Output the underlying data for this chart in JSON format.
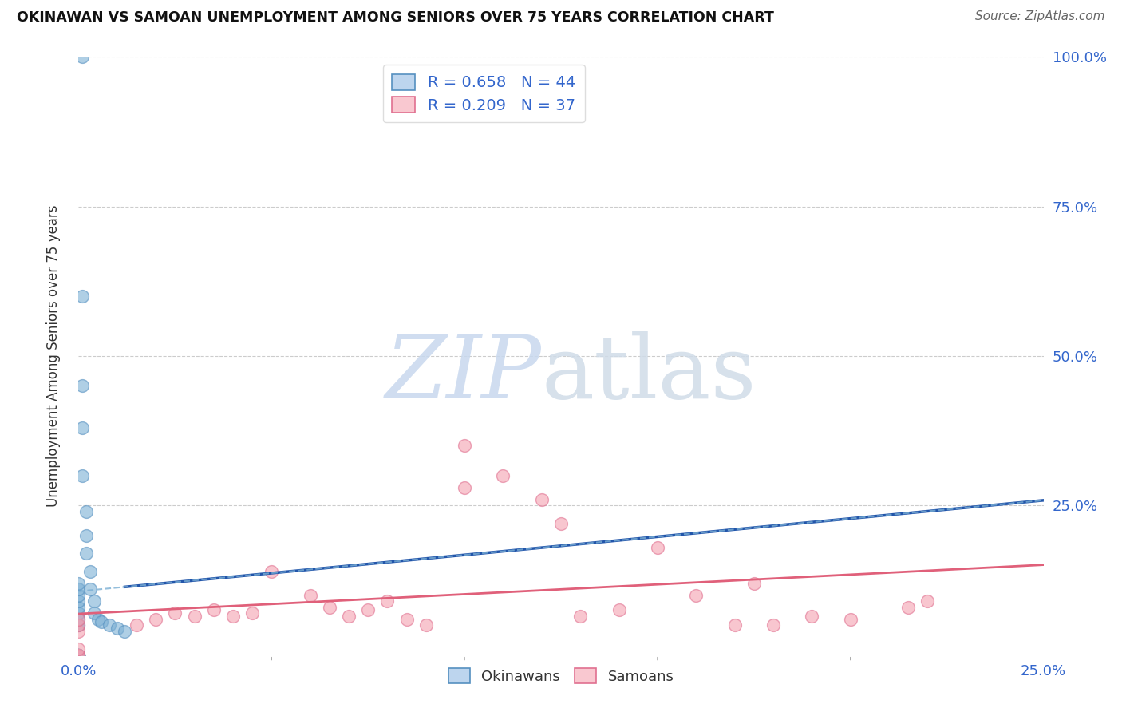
{
  "title": "OKINAWAN VS SAMOAN UNEMPLOYMENT AMONG SENIORS OVER 75 YEARS CORRELATION CHART",
  "source": "Source: ZipAtlas.com",
  "ylabel": "Unemployment Among Seniors over 75 years",
  "xlim": [
    0.0,
    0.25
  ],
  "ylim": [
    0.0,
    1.0
  ],
  "okinawan_color": "#7BAFD4",
  "okinawan_edge_color": "#5590C0",
  "samoan_color": "#F4A0B0",
  "samoan_edge_color": "#E07090",
  "okinawan_line_color": "#2255AA",
  "samoan_line_color": "#E0607A",
  "legend_fill_okinawan": "#BDD5EE",
  "legend_fill_samoan": "#F9C8D0",
  "R_okinawan": 0.658,
  "N_okinawan": 44,
  "R_samoan": 0.209,
  "N_samoan": 37,
  "background_color": "#FFFFFF",
  "grid_color": "#CCCCCC",
  "tick_color": "#3366CC",
  "title_color": "#111111",
  "source_color": "#666666",
  "ylabel_color": "#333333",
  "watermark_zip_color": "#C8D8EE",
  "watermark_atlas_color": "#D0DCE8",
  "ok_x": [
    0.0,
    0.0,
    0.0,
    0.0,
    0.0,
    0.0,
    0.0,
    0.0,
    0.0,
    0.0,
    0.0,
    0.0,
    0.0,
    0.0,
    0.0,
    0.0,
    0.0,
    0.0,
    0.0,
    0.0,
    0.0,
    0.0,
    0.0,
    0.0,
    0.0,
    0.0,
    0.0,
    0.001,
    0.001,
    0.001,
    0.001,
    0.001,
    0.002,
    0.002,
    0.002,
    0.003,
    0.003,
    0.004,
    0.004,
    0.005,
    0.006,
    0.008,
    0.01,
    0.012
  ],
  "ok_y": [
    0.0,
    0.0,
    0.0,
    0.0,
    0.0,
    0.0,
    0.0,
    0.0,
    0.0,
    0.0,
    0.0,
    0.0,
    0.0,
    0.0,
    0.0,
    0.0,
    0.0,
    0.0,
    0.05,
    0.05,
    0.06,
    0.07,
    0.08,
    0.09,
    0.1,
    0.11,
    0.12,
    1.0,
    0.6,
    0.45,
    0.38,
    0.3,
    0.24,
    0.2,
    0.17,
    0.14,
    0.11,
    0.09,
    0.07,
    0.06,
    0.055,
    0.05,
    0.045,
    0.04
  ],
  "sa_x": [
    0.0,
    0.0,
    0.0,
    0.0,
    0.0,
    0.0,
    0.015,
    0.02,
    0.025,
    0.03,
    0.035,
    0.04,
    0.045,
    0.05,
    0.06,
    0.065,
    0.07,
    0.075,
    0.08,
    0.085,
    0.09,
    0.1,
    0.1,
    0.11,
    0.12,
    0.125,
    0.13,
    0.14,
    0.15,
    0.16,
    0.17,
    0.175,
    0.18,
    0.19,
    0.2,
    0.215,
    0.22
  ],
  "sa_y": [
    0.0,
    0.0,
    0.01,
    0.04,
    0.05,
    0.06,
    0.05,
    0.06,
    0.07,
    0.065,
    0.075,
    0.065,
    0.07,
    0.14,
    0.1,
    0.08,
    0.065,
    0.075,
    0.09,
    0.06,
    0.05,
    0.35,
    0.28,
    0.3,
    0.26,
    0.22,
    0.065,
    0.075,
    0.18,
    0.1,
    0.05,
    0.12,
    0.05,
    0.065,
    0.06,
    0.08,
    0.09
  ]
}
